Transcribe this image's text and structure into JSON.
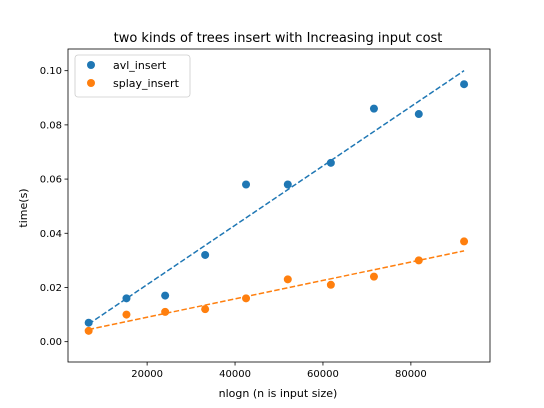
{
  "chart_data": {
    "type": "scatter",
    "title": "two kinds of trees insert with Increasing input cost",
    "xlabel": "nlogn (n is input size)",
    "ylabel": "time(s)",
    "xlim": [
      2000,
      98000
    ],
    "ylim": [
      -0.0075,
      0.108
    ],
    "xticks": [
      20000,
      40000,
      60000,
      80000
    ],
    "xtick_labels": [
      "20000",
      "40000",
      "60000",
      "80000"
    ],
    "yticks": [
      0.0,
      0.02,
      0.04,
      0.06,
      0.08,
      0.1
    ],
    "ytick_labels": [
      "0.00",
      "0.02",
      "0.04",
      "0.06",
      "0.08",
      "0.10"
    ],
    "grid": false,
    "legend_position": "top-left",
    "x": [
      6700,
      15300,
      24100,
      33200,
      42500,
      52000,
      61800,
      71600,
      81800,
      92100
    ],
    "series": [
      {
        "name": "avl_insert",
        "color": "#1f77b4",
        "values": [
          0.007,
          0.016,
          0.017,
          0.032,
          0.058,
          0.058,
          0.066,
          0.086,
          0.084,
          0.095
        ],
        "fit": [
          [
            6700,
            0.0065
          ],
          [
            92100,
            0.1
          ]
        ]
      },
      {
        "name": "splay_insert",
        "color": "#ff7f0e",
        "values": [
          0.004,
          0.01,
          0.011,
          0.012,
          0.016,
          0.023,
          0.021,
          0.024,
          0.03,
          0.037
        ],
        "fit": [
          [
            6700,
            0.0045
          ],
          [
            92100,
            0.0335
          ]
        ]
      }
    ]
  }
}
